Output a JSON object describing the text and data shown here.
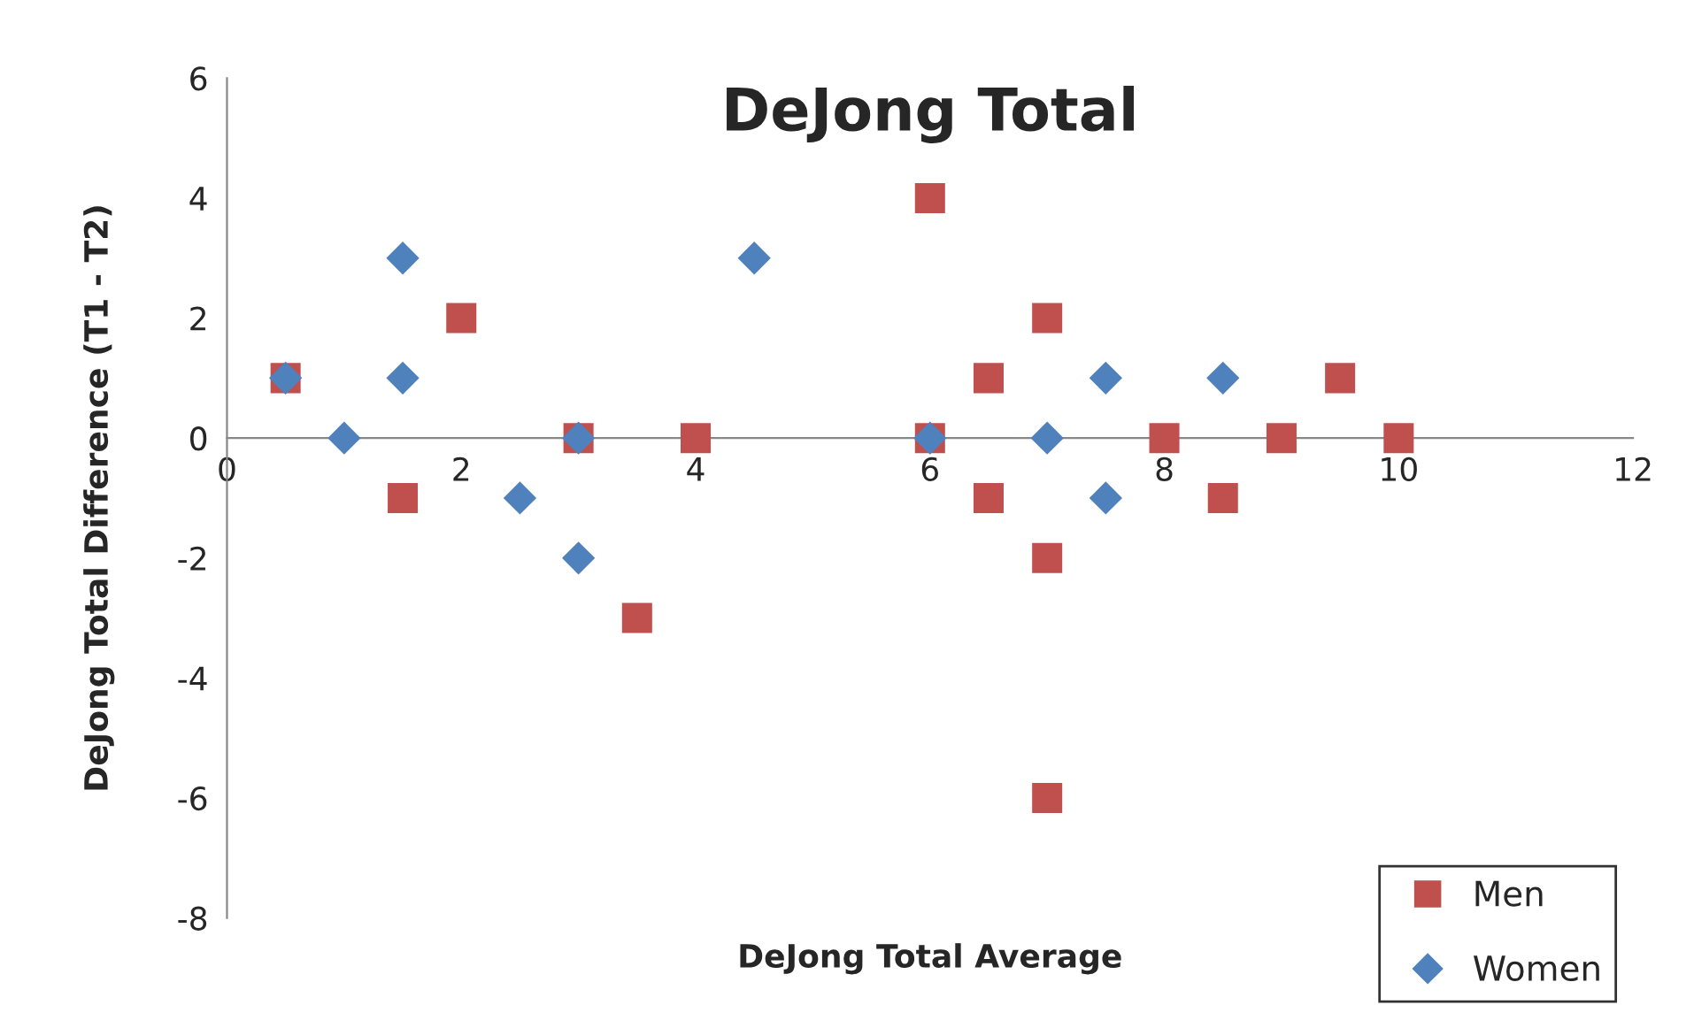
{
  "chart_data": {
    "type": "scatter",
    "title": "DeJong Total",
    "xlabel": "DeJong Total Average",
    "ylabel": "DeJong Total Difference (T1 - T2)",
    "xlim": [
      0,
      12
    ],
    "xticks": [
      0,
      2,
      4,
      6,
      8,
      10,
      12
    ],
    "ylim": [
      -8,
      6
    ],
    "yticks": [
      -8,
      -6,
      -4,
      -2,
      0,
      2,
      4,
      6
    ],
    "grid": false,
    "legend": "bottom right",
    "series": [
      {
        "name": "Men",
        "color": "#c0504d",
        "marker": "square",
        "x": [
          0.5,
          1.5,
          2,
          3,
          3.5,
          4,
          6,
          6,
          6.5,
          6.5,
          7,
          7,
          7,
          8,
          8.5,
          9,
          9.5,
          10
        ],
        "values": [
          1,
          -1,
          2,
          0,
          -3,
          0,
          4,
          0,
          1,
          -1,
          2,
          -2,
          -6,
          0,
          -1,
          0,
          1,
          0
        ]
      },
      {
        "name": "Women",
        "color": "#4f81bd",
        "marker": "diamond",
        "x": [
          0.5,
          1,
          1.5,
          1.5,
          2.5,
          3,
          3,
          4.5,
          6,
          7,
          7.5,
          7.5,
          8.5
        ],
        "values": [
          1,
          0,
          3,
          1,
          -1,
          -2,
          0,
          3,
          0,
          0,
          1,
          -1,
          1
        ]
      }
    ]
  }
}
